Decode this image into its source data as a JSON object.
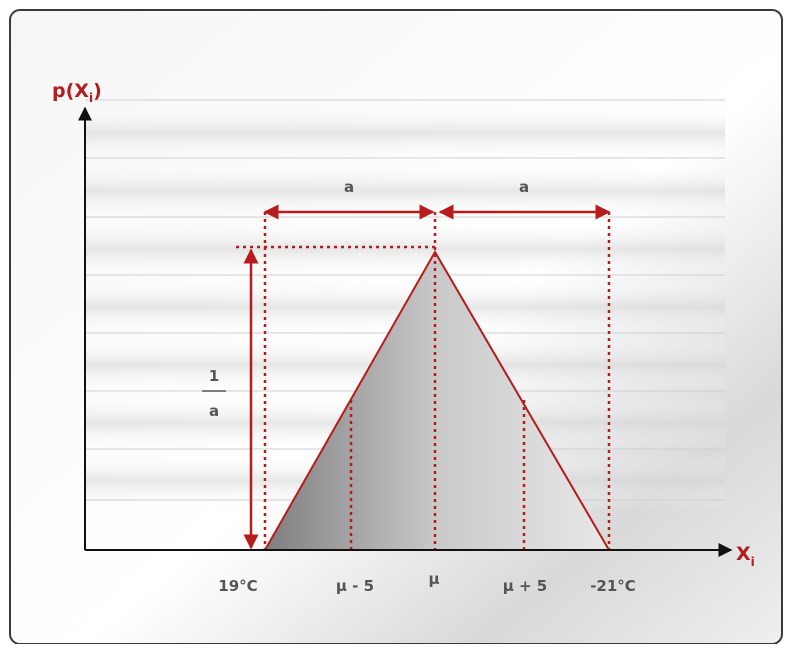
{
  "diagram": {
    "y_axis_label": "p(X",
    "y_axis_sub": "i",
    "x_axis_label": "X",
    "x_axis_sub": "i",
    "width_label_left": "a",
    "width_label_right": "a",
    "height_numerator": "1",
    "height_denominator": "a",
    "tick_left": "19°C",
    "tick_mu_minus": "μ - 5",
    "tick_mu": "μ",
    "tick_mu_plus": "μ + 5",
    "tick_right": "-21°C"
  },
  "colors": {
    "accent_red": "#b71c1c",
    "axis": "#111111",
    "label": "#555555",
    "triangle_fill_dark": "#8a8a8a",
    "triangle_fill_light": "#e6e6e6",
    "frame": "#3a3a3a"
  }
}
